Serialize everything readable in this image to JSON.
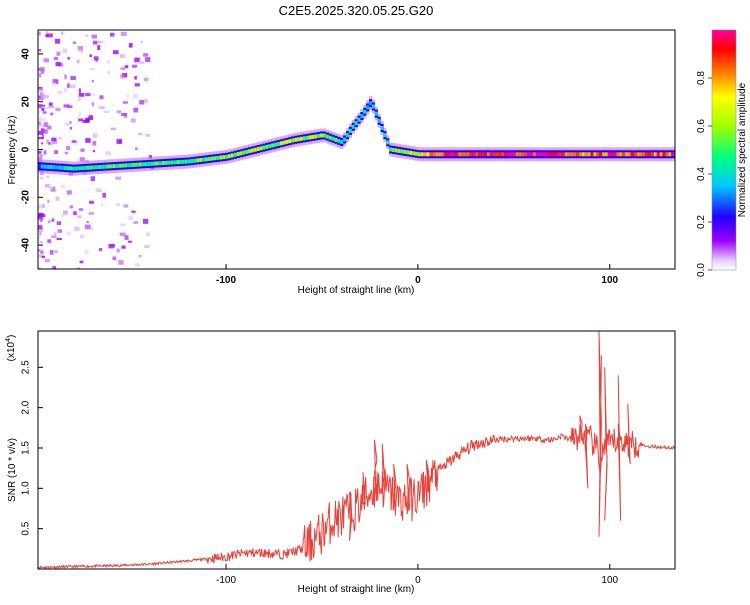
{
  "chart_data": [
    {
      "type": "heatmap",
      "title": "C2E5.2025.320.05.25.G20",
      "xlabel": "Height of straight line (km)",
      "ylabel": "Frequency (Hz)",
      "xlim": [
        -198,
        134
      ],
      "ylim": [
        -50,
        50
      ],
      "x_ticks": [
        -100,
        0,
        100
      ],
      "x_tick_labels": [
        "-100",
        "0",
        "100"
      ],
      "y_ticks": [
        -40,
        -20,
        0,
        20,
        40
      ],
      "y_tick_labels": [
        "-40",
        "-20",
        "0",
        "20",
        "40"
      ],
      "colorbar": {
        "label": "Normalized spectral amplitude",
        "range": [
          0,
          1
        ],
        "ticks": [
          0.0,
          0.2,
          0.4,
          0.6,
          0.8
        ],
        "tick_labels": [
          "0.0",
          "0.2",
          "0.4",
          "0.6",
          "0.8"
        ]
      },
      "doppler_trace": [
        {
          "x": -198,
          "freq": -7,
          "amp": 0.3
        },
        {
          "x": -180,
          "freq": -8,
          "amp": 0.45
        },
        {
          "x": -160,
          "freq": -7,
          "amp": 0.5
        },
        {
          "x": -140,
          "freq": -6,
          "amp": 0.5
        },
        {
          "x": -120,
          "freq": -5,
          "amp": 0.5
        },
        {
          "x": -100,
          "freq": -3,
          "amp": 0.55
        },
        {
          "x": -80,
          "freq": 1,
          "amp": 0.55
        },
        {
          "x": -65,
          "freq": 4,
          "amp": 0.6
        },
        {
          "x": -50,
          "freq": 6,
          "amp": 0.55
        },
        {
          "x": -40,
          "freq": 3,
          "amp": 0.45
        },
        {
          "x": -35,
          "freq": 9,
          "amp": 0.45
        },
        {
          "x": -30,
          "freq": 14,
          "amp": 0.4
        },
        {
          "x": -25,
          "freq": 20,
          "amp": 0.35
        },
        {
          "x": -15,
          "freq": 0,
          "amp": 0.5
        },
        {
          "x": 0,
          "freq": -2,
          "amp": 0.7
        },
        {
          "x": 10,
          "freq": -2,
          "amp": 0.9
        },
        {
          "x": 50,
          "freq": -2,
          "amp": 0.95
        },
        {
          "x": 90,
          "freq": -2,
          "amp": 0.85
        },
        {
          "x": 134,
          "freq": -2,
          "amp": 0.9
        }
      ]
    },
    {
      "type": "line",
      "title": "",
      "xlabel": "Height of straight line (km)",
      "ylabel": "SNR (10 * v/v)",
      "multiplier": "(x10",
      "multiplier_exp": "4",
      "multiplier_close": ")",
      "xlim": [
        -198,
        134
      ],
      "ylim": [
        0,
        2.95
      ],
      "x_ticks": [
        -100,
        0,
        100
      ],
      "x_tick_labels": [
        "-100",
        "0",
        "100"
      ],
      "y_ticks": [
        0.5,
        1.0,
        1.5,
        2.0,
        2.5
      ],
      "y_tick_labels": [
        "0.5",
        "1.0",
        "1.5",
        "2.0",
        "2.5"
      ],
      "series": [
        {
          "name": "SNR",
          "color": "#e8413a",
          "x": [
            -198,
            -180,
            -160,
            -140,
            -120,
            -100,
            -90,
            -80,
            -70,
            -60,
            -55,
            -50,
            -45,
            -40,
            -35,
            -30,
            -25,
            -20,
            -15,
            -10,
            -5,
            0,
            5,
            10,
            15,
            20,
            30,
            40,
            50,
            60,
            70,
            75,
            80,
            85,
            90,
            93,
            95,
            97,
            100,
            105,
            110,
            115,
            120,
            134
          ],
          "values": [
            0.02,
            0.03,
            0.04,
            0.06,
            0.1,
            0.15,
            0.2,
            0.2,
            0.18,
            0.25,
            0.35,
            0.45,
            0.6,
            0.65,
            0.7,
            0.8,
            0.95,
            1.05,
            0.95,
            0.85,
            0.85,
            0.9,
            1.05,
            1.2,
            1.3,
            1.4,
            1.55,
            1.6,
            1.62,
            1.62,
            1.6,
            1.65,
            1.6,
            1.65,
            1.6,
            1.5,
            1.3,
            1.5,
            1.55,
            1.6,
            1.55,
            1.55,
            1.52,
            1.5
          ]
        }
      ],
      "spikes": [
        {
          "x": -35,
          "values": [
            0.35,
            0.65,
            0.95
          ]
        },
        {
          "x": -28,
          "values": [
            1.1,
            0.8,
            1.2
          ]
        },
        {
          "x": -22,
          "values": [
            1.6,
            1.35,
            1.2
          ]
        },
        {
          "x": -18,
          "values": [
            1.55,
            1.15,
            1.0
          ]
        },
        {
          "x": -12,
          "values": [
            1.3,
            1.05,
            0.9
          ]
        },
        {
          "x": -5,
          "values": [
            1.3,
            1.1
          ]
        },
        {
          "x": 5,
          "values": [
            1.35,
            1.2
          ]
        },
        {
          "x": 85,
          "values": [
            1.9,
            1.8
          ]
        },
        {
          "x": 88,
          "values": [
            1.8,
            1.0,
            1.5
          ]
        },
        {
          "x": 95,
          "values": [
            2.95,
            1.8,
            0.4,
            2.65
          ]
        },
        {
          "x": 98,
          "values": [
            2.5,
            1.3,
            0.6,
            1.4
          ]
        },
        {
          "x": 105,
          "values": [
            2.4,
            0.6,
            1.8
          ]
        },
        {
          "x": 110,
          "values": [
            2.05,
            1.3,
            1.55
          ]
        }
      ]
    }
  ]
}
